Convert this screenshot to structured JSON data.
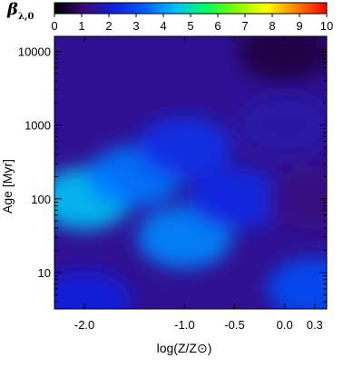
{
  "chart_data": {
    "type": "heatmap",
    "colorbar": {
      "label_main": "β",
      "label_sub": "λ,0",
      "min": 0,
      "max": 10,
      "ticks": [
        0,
        1,
        2,
        3,
        4,
        5,
        6,
        7,
        8,
        9,
        10
      ],
      "colormap": [
        "#000000",
        "#3a0a78",
        "#1020e0",
        "#0060ff",
        "#00c0ff",
        "#00ff60",
        "#80ff00",
        "#ffff00",
        "#ff8000",
        "#ff0000"
      ]
    },
    "xlabel": "log(Z/Z⊙)",
    "ylabel": "Age [Myr]",
    "x_scale": "linear",
    "y_scale": "log",
    "xlim": [
      -2.3,
      0.42
    ],
    "ylim": [
      3.2,
      16000
    ],
    "x_tick_values": [
      -2.0,
      -1.0,
      -0.5,
      0.0,
      0.3
    ],
    "x_tick_labels": [
      "-2.0",
      "-1.0",
      "-0.5",
      "0.0",
      "0.3"
    ],
    "y_tick_values": [
      10,
      100,
      1000,
      10000
    ],
    "y_tick_labels": [
      "10",
      "100",
      "1000",
      "10000"
    ],
    "grid": false,
    "regions": [
      {
        "x": -2.0,
        "age": 100,
        "value": 4.5
      },
      {
        "x": -1.5,
        "age": 200,
        "value": 3.6
      },
      {
        "x": -1.0,
        "age": 30,
        "value": 3.8
      },
      {
        "x": -1.0,
        "age": 500,
        "value": 2.5
      },
      {
        "x": -0.5,
        "age": 100,
        "value": 2.4
      },
      {
        "x": 0.0,
        "age": 1000,
        "value": 1.6
      },
      {
        "x": 0.0,
        "age": 10000,
        "value": 0.6
      },
      {
        "x": 0.3,
        "age": 6,
        "value": 3.0
      },
      {
        "x": -2.0,
        "age": 4,
        "value": 2.2
      },
      {
        "x": 0.3,
        "age": 100,
        "value": 1.2
      }
    ]
  }
}
